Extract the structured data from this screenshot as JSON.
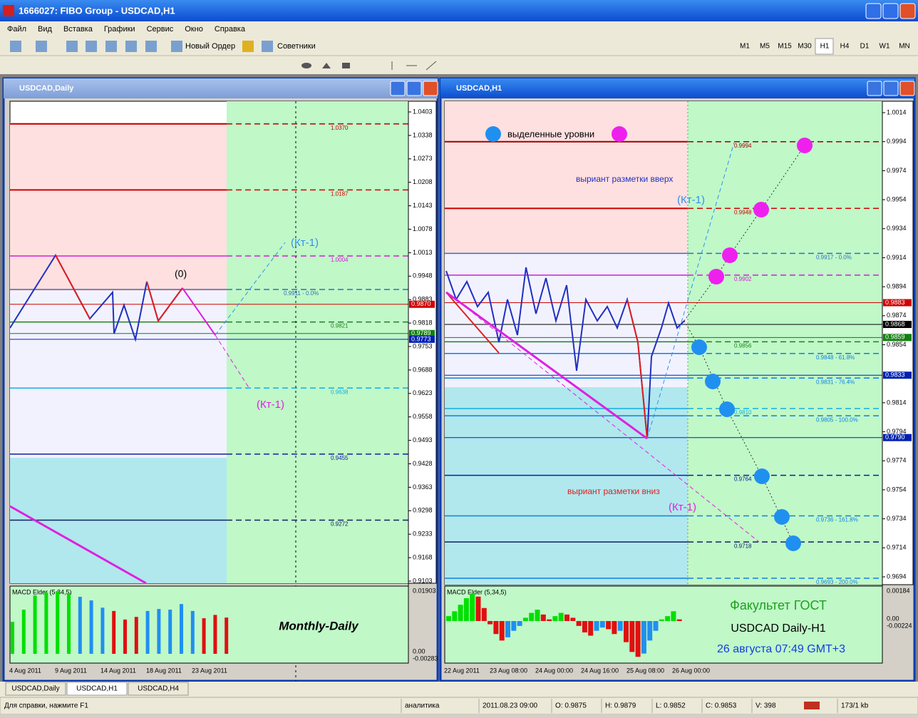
{
  "window": {
    "title": "1666027: FIBO Group - USDCAD,H1"
  },
  "menu": [
    "Файл",
    "Вид",
    "Вставка",
    "Графики",
    "Сервис",
    "Окно",
    "Справка"
  ],
  "toolbar": {
    "new_order": "Новый Ордер",
    "experts": "Советники",
    "timeframes": [
      "M1",
      "M5",
      "M15",
      "M30",
      "H1",
      "H4",
      "D1",
      "W1",
      "MN"
    ]
  },
  "left": {
    "title": "USDCAD,Daily",
    "yticks": [
      "1.0403",
      "1.0338",
      "1.0273",
      "1.0208",
      "1.0143",
      "1.0078",
      "1.0013",
      "0.9948",
      "0.9883",
      "0.9818",
      "0.9753",
      "0.9688",
      "0.9623",
      "0.9558",
      "0.9493",
      "0.9428",
      "0.9363",
      "0.9298",
      "0.9233",
      "0.9168",
      "0.9103"
    ],
    "levels": [
      {
        "label": "1.0370",
        "color": "#c00000"
      },
      {
        "label": "1.0187",
        "color": "#d00000"
      },
      {
        "label": "1.0004",
        "color": "#d020d0"
      },
      {
        "label": "0.9911 - 0.0%",
        "color": "#3070c0"
      },
      {
        "label": "0.9821",
        "color": "#208020"
      },
      {
        "label": "0.9638",
        "color": "#10b0e0"
      },
      {
        "label": "0.9455",
        "color": "#1020a0"
      },
      {
        "label": "0.9272",
        "color": "#102060"
      }
    ],
    "markers": [
      {
        "label": "0.9870",
        "color": "#d00000"
      },
      {
        "label": "0.9789",
        "color": "#108010"
      },
      {
        "label": "0.9773",
        "color": "#0020b0"
      }
    ],
    "annotations": [
      "(Кт-1)",
      "(Кт-1)",
      "(0)"
    ],
    "dates": [
      "4 Aug 2011",
      "9 Aug 2011",
      "14 Aug 2011",
      "18 Aug 2011",
      "23 Aug 2011"
    ],
    "macd": {
      "label": "MACD Elder (5,34,5)",
      "ticks": [
        "0.01903",
        "0.00",
        "-0.00283"
      ],
      "values": [
        0.0097,
        0.0134,
        0.0177,
        0.0186,
        0.019,
        0.0184,
        0.0173,
        0.0162,
        0.014,
        0.013,
        0.0104,
        0.0112,
        0.013,
        0.0136,
        0.0134,
        0.0151,
        0.013,
        0.0108,
        0.0118,
        0.011
      ],
      "colors": [
        "#00e000",
        "#00e000",
        "#00e000",
        "#00e000",
        "#00e000",
        "#00e000",
        "#2090f0",
        "#2090f0",
        "#2090f0",
        "#e01010",
        "#e01010",
        "#e01010",
        "#2090f0",
        "#2090f0",
        "#2090f0",
        "#2090f0",
        "#2090f0",
        "#e01010",
        "#e01010",
        "#e01010"
      ]
    },
    "caption": "Monthly-Daily"
  },
  "right": {
    "title": "USDCAD,H1",
    "yticks": [
      "1.0014",
      "0.9994",
      "0.9974",
      "0.9954",
      "0.9934",
      "0.9914",
      "0.9894",
      "0.9874",
      "0.9854",
      "0.9814",
      "0.9794",
      "0.9774",
      "0.9754",
      "0.9734",
      "0.9714",
      "0.9694"
    ],
    "levels": [
      {
        "label": "0.9994",
        "color": "#a00000"
      },
      {
        "label": "0.9948",
        "color": "#d00000"
      },
      {
        "label": "0.9917 - 0.0%",
        "color": "#3070c0"
      },
      {
        "label": "0.9902",
        "color": "#d020d0"
      },
      {
        "label": "0.9856",
        "color": "#208020"
      },
      {
        "label": "0.9848 - 61.8%",
        "color": "#1080e0"
      },
      {
        "label": "0.9831 - 76.4%",
        "color": "#1080e0"
      },
      {
        "label": "0.9810",
        "color": "#10b0e0"
      },
      {
        "label": "0.9805 - 100.0%",
        "color": "#1080e0"
      },
      {
        "label": "0.9764",
        "color": "#1020a0"
      },
      {
        "label": "0.9736 - 161.8%",
        "color": "#1080e0"
      },
      {
        "label": "0.9718",
        "color": "#102060"
      },
      {
        "label": "0.9693 - 200.0%",
        "color": "#1080e0"
      }
    ],
    "markers": [
      {
        "label": "0.9883",
        "color": "#d00000"
      },
      {
        "label": "0.9868",
        "color": "#000000"
      },
      {
        "label": "0.9859",
        "color": "#108010"
      },
      {
        "label": "0.9833",
        "color": "#0020b0"
      },
      {
        "label": "0.9790",
        "color": "#0020b0"
      }
    ],
    "annotations": [
      "выделенные уровни",
      "выриант разметки вверх",
      "(Кт-1)",
      "выриант разметки вниз",
      "(Кт-1)"
    ],
    "dates": [
      "22 Aug 2011",
      "23 Aug 08:00",
      "24 Aug 00:00",
      "24 Aug 16:00",
      "25 Aug 08:00",
      "26 Aug 00:00"
    ],
    "macd": {
      "label": "MACD Elder (5,34,5)",
      "ticks": [
        "0.00184",
        "0.00",
        "-0.00224"
      ],
      "values": [
        0.0003,
        0.0006,
        0.001,
        0.0014,
        0.0017,
        0.0015,
        0.0008,
        -0.0002,
        -0.0008,
        -0.0012,
        -0.001,
        -0.0006,
        -0.0003,
        0.0002,
        0.0005,
        0.0007,
        0.0004,
        0.0001,
        0.0003,
        0.0005,
        0.0004,
        0.0002,
        -0.0003,
        -0.0007,
        -0.0009,
        -0.0006,
        -0.0004,
        -0.0005,
        -0.0008,
        -0.0006,
        -0.0013,
        -0.0019,
        -0.0022,
        -0.002,
        -0.0012,
        -0.0006,
        0.0001,
        0.0003,
        0.0006,
        0.0001
      ],
      "colors": [
        "#00e000",
        "#00e000",
        "#00e000",
        "#00e000",
        "#00e000",
        "#e01010",
        "#e01010",
        "#e01010",
        "#e01010",
        "#e01010",
        "#2090f0",
        "#2090f0",
        "#2090f0",
        "#00e000",
        "#00e000",
        "#00e000",
        "#e01010",
        "#e01010",
        "#00e000",
        "#00e000",
        "#e01010",
        "#e01010",
        "#e01010",
        "#e01010",
        "#e01010",
        "#2090f0",
        "#2090f0",
        "#e01010",
        "#e01010",
        "#2090f0",
        "#e01010",
        "#e01010",
        "#e01010",
        "#2090f0",
        "#2090f0",
        "#2090f0",
        "#00e000",
        "#00e000",
        "#00e000",
        "#e01010"
      ]
    },
    "info": [
      "Факультет ГОСТ",
      "USDCAD Daily-H1",
      "26 августа 07:49 GMT+3"
    ]
  },
  "tabs": [
    "USDCAD,Daily",
    "USDCAD,H1",
    "USDCAD,H4"
  ],
  "status": [
    "Для справки, нажмите F1",
    "аналитика",
    "2011.08.23 09:00",
    "O: 0.9875",
    "H: 0.9879",
    "L: 0.9852",
    "C: 0.9853",
    "V: 398",
    "173/1 kb"
  ]
}
